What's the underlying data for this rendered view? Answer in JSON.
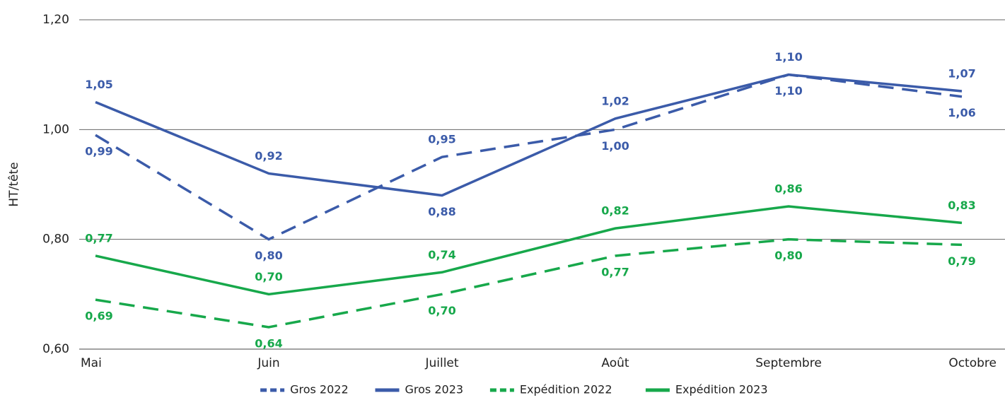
{
  "chart_data": {
    "type": "line",
    "y_label": "HT/tête",
    "categories": [
      "Mai",
      "Juin",
      "Juillet",
      "Août",
      "Septembre",
      "Octobre"
    ],
    "series": [
      {
        "name": "Gros 2022",
        "color": "#3b5ba9",
        "dashed": true,
        "values": [
          0.99,
          0.8,
          0.95,
          1.0,
          1.1,
          1.06
        ],
        "value_labels": [
          "0,99",
          "0,80",
          "0,95",
          "1,00",
          "1,10",
          "1,06"
        ]
      },
      {
        "name": "Gros 2023",
        "color": "#3b5ba9",
        "dashed": false,
        "values": [
          1.05,
          0.92,
          0.88,
          1.02,
          1.1,
          1.07
        ],
        "value_labels": [
          "1,05",
          "0,92",
          "0,88",
          "1,02",
          "1,10",
          "1,07"
        ]
      },
      {
        "name": "Expédition 2022",
        "color": "#17a84b",
        "dashed": true,
        "values": [
          0.69,
          0.64,
          0.7,
          0.77,
          0.8,
          0.79
        ],
        "value_labels": [
          "0,69",
          "0,64",
          "0,70",
          "0,77",
          "0,80",
          "0,79"
        ]
      },
      {
        "name": "Expédition 2023",
        "color": "#17a84b",
        "dashed": false,
        "values": [
          0.77,
          0.7,
          0.74,
          0.82,
          0.86,
          0.83
        ],
        "value_labels": [
          "0,77",
          "0,70",
          "0,74",
          "0,82",
          "0,86",
          "0,83"
        ]
      }
    ],
    "ylim": [
      0.6,
      1.2
    ],
    "yticks": [
      {
        "value": 0.6,
        "label": "0,60"
      },
      {
        "value": 0.8,
        "label": "0,80"
      },
      {
        "value": 1.0,
        "label": "1,00"
      },
      {
        "value": 1.2,
        "label": "1,20"
      }
    ],
    "grid": true,
    "legend": "bottom"
  }
}
